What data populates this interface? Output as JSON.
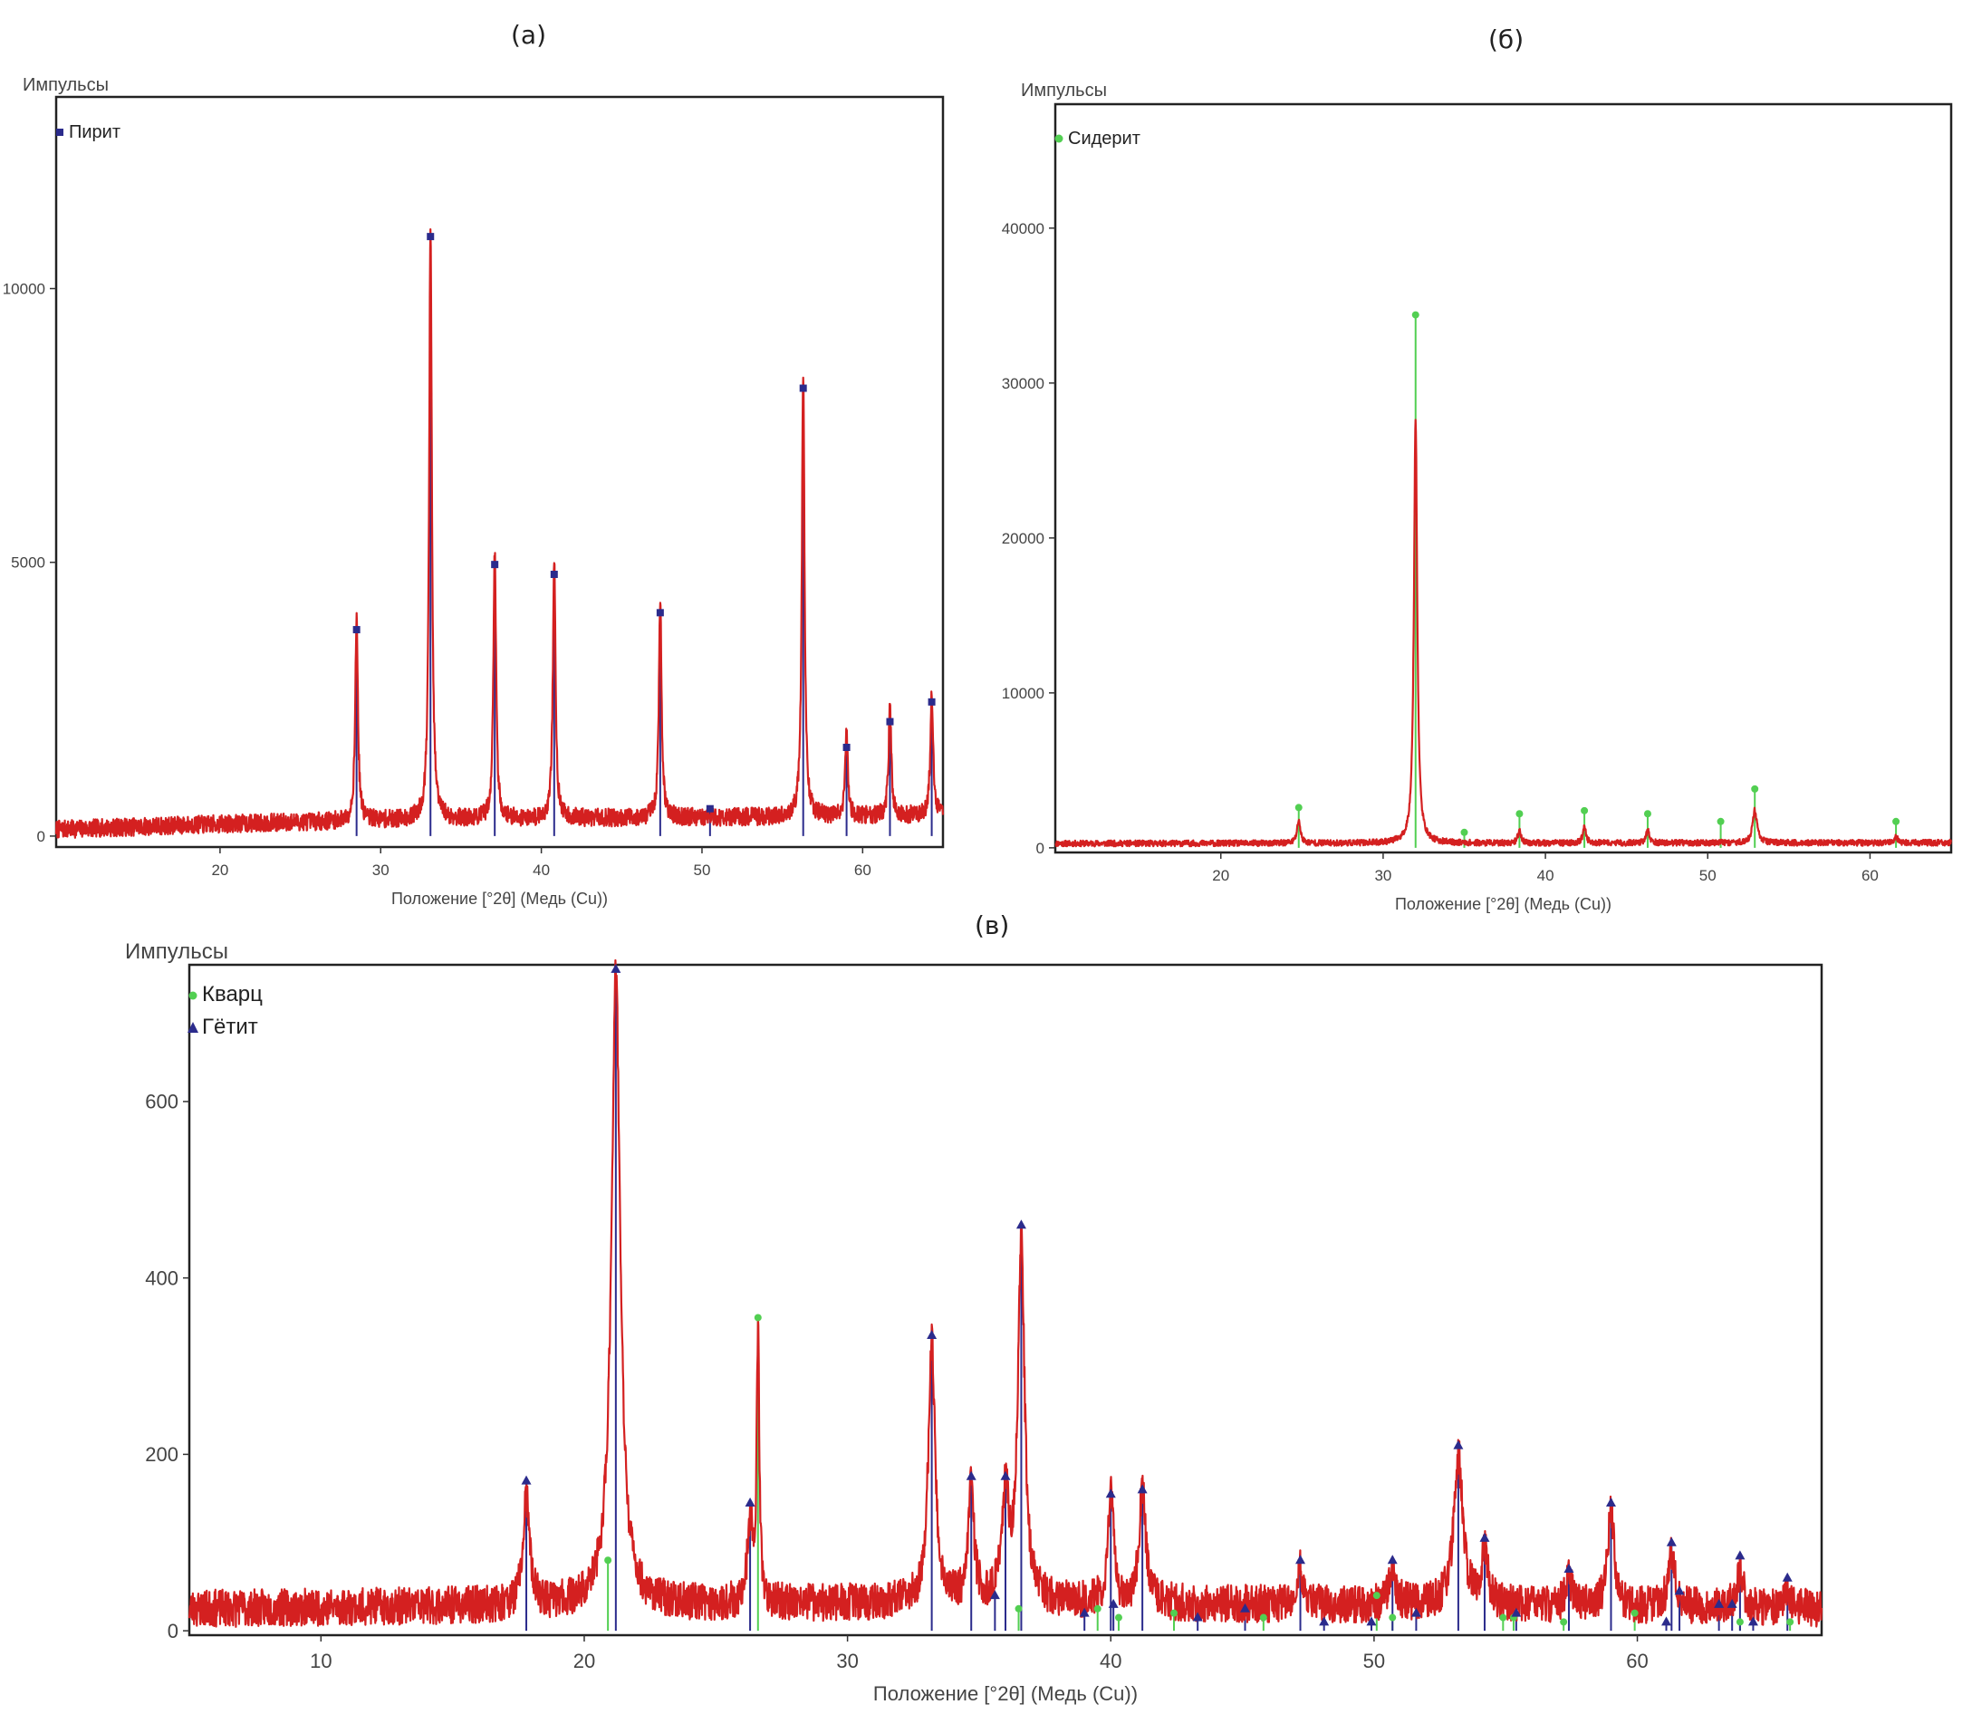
{
  "panel_labels": [
    "(а)",
    "(б)",
    "(в)"
  ],
  "colors": {
    "pattern": "#d42020",
    "pyrite": "#2b2b8c",
    "siderite": "#52cf52",
    "quartz": "#52cf52",
    "goethite": "#2b2b8c",
    "frame": "#222222"
  },
  "chart_data": [
    {
      "type": "line",
      "panel": "(а)",
      "ylabel": "Импульсы",
      "xlabel": "Положение [°2θ] (Медь (Cu))",
      "xlim": [
        9.8,
        65
      ],
      "ylim": [
        -200,
        13500
      ],
      "xticks": [
        20,
        30,
        40,
        50,
        60
      ],
      "yticks": [
        0,
        5000,
        10000
      ],
      "baseline": {
        "x": [
          9.8,
          20,
          30,
          40,
          50,
          60,
          65
        ],
        "y": [
          120,
          220,
          290,
          320,
          340,
          360,
          380
        ]
      },
      "peaks": [
        {
          "x": 28.5,
          "y": 3700,
          "w": 0.1
        },
        {
          "x": 33.1,
          "y": 10900,
          "w": 0.1
        },
        {
          "x": 37.1,
          "y": 4900,
          "w": 0.1
        },
        {
          "x": 40.8,
          "y": 4700,
          "w": 0.1
        },
        {
          "x": 47.4,
          "y": 4000,
          "w": 0.1
        },
        {
          "x": 56.3,
          "y": 8100,
          "w": 0.1
        },
        {
          "x": 59.0,
          "y": 1500,
          "w": 0.1
        },
        {
          "x": 61.7,
          "y": 2000,
          "w": 0.1
        },
        {
          "x": 64.3,
          "y": 2300,
          "w": 0.1
        }
      ],
      "phases": [
        {
          "name": "Пирит",
          "marker": "square",
          "color": "#2b2b8c",
          "refs": [
            [
              28.5,
              3770
            ],
            [
              33.1,
              10950
            ],
            [
              37.1,
              4960
            ],
            [
              40.8,
              4780
            ],
            [
              47.4,
              4080
            ],
            [
              50.5,
              500
            ],
            [
              56.3,
              8180
            ],
            [
              59.0,
              1620
            ],
            [
              61.7,
              2090
            ],
            [
              64.3,
              2450
            ]
          ]
        }
      ]
    },
    {
      "type": "line",
      "panel": "(б)",
      "ylabel": "Импульсы",
      "xlabel": "Положение [°2θ] (Медь (Cu))",
      "xlim": [
        9.8,
        65
      ],
      "ylim": [
        -300,
        48000
      ],
      "xticks": [
        20,
        30,
        40,
        50,
        60
      ],
      "yticks": [
        0,
        10000,
        20000,
        30000,
        40000
      ],
      "baseline": {
        "x": [
          9.8,
          30,
          40,
          50,
          60,
          65
        ],
        "y": [
          280,
          300,
          300,
          320,
          320,
          330
        ]
      },
      "peaks": [
        {
          "x": 24.8,
          "y": 1500,
          "w": 0.12
        },
        {
          "x": 32.0,
          "y": 27500,
          "w": 0.12
        },
        {
          "x": 38.4,
          "y": 800,
          "w": 0.12
        },
        {
          "x": 42.4,
          "y": 1000,
          "w": 0.12
        },
        {
          "x": 46.3,
          "y": 800,
          "w": 0.12
        },
        {
          "x": 52.9,
          "y": 2100,
          "w": 0.16
        },
        {
          "x": 61.6,
          "y": 400,
          "w": 0.12
        }
      ],
      "phases": [
        {
          "name": "Сидерит",
          "marker": "circle",
          "color": "#52cf52",
          "refs": [
            [
              24.8,
              2600
            ],
            [
              32.0,
              34400
            ],
            [
              35.0,
              1000
            ],
            [
              38.4,
              2200
            ],
            [
              42.4,
              2400
            ],
            [
              46.3,
              2200
            ],
            [
              50.8,
              1700
            ],
            [
              52.9,
              3800
            ],
            [
              61.6,
              1700
            ]
          ]
        }
      ]
    },
    {
      "type": "line",
      "panel": "(в)",
      "ylabel": "Импульсы",
      "xlabel": "Положение [°2θ] (Медь (Cu))",
      "xlim": [
        5,
        67
      ],
      "ylim": [
        -5,
        755
      ],
      "xticks": [
        10,
        20,
        30,
        40,
        50,
        60
      ],
      "yticks": [
        0,
        200,
        400,
        600
      ],
      "baseline": {
        "x": [
          5,
          15,
          25,
          35,
          45,
          55,
          67
        ],
        "y": [
          25,
          28,
          30,
          32,
          30,
          28,
          25
        ]
      },
      "peaks": [
        {
          "x": 17.8,
          "y": 120,
          "w": 0.15
        },
        {
          "x": 21.2,
          "y": 720,
          "w": 0.2
        },
        {
          "x": 26.3,
          "y": 90,
          "w": 0.12
        },
        {
          "x": 26.6,
          "y": 300,
          "w": 0.06
        },
        {
          "x": 33.2,
          "y": 300,
          "w": 0.15
        },
        {
          "x": 34.7,
          "y": 140,
          "w": 0.12
        },
        {
          "x": 36.0,
          "y": 120,
          "w": 0.15
        },
        {
          "x": 36.6,
          "y": 410,
          "w": 0.15
        },
        {
          "x": 40.0,
          "y": 130,
          "w": 0.12
        },
        {
          "x": 41.2,
          "y": 130,
          "w": 0.15
        },
        {
          "x": 47.2,
          "y": 40,
          "w": 0.15
        },
        {
          "x": 50.7,
          "y": 40,
          "w": 0.15
        },
        {
          "x": 53.2,
          "y": 170,
          "w": 0.2
        },
        {
          "x": 54.2,
          "y": 60,
          "w": 0.15
        },
        {
          "x": 57.4,
          "y": 30,
          "w": 0.15
        },
        {
          "x": 59.0,
          "y": 110,
          "w": 0.15
        },
        {
          "x": 61.3,
          "y": 60,
          "w": 0.15
        },
        {
          "x": 63.9,
          "y": 40,
          "w": 0.15
        },
        {
          "x": 65.7,
          "y": 20,
          "w": 0.15
        }
      ],
      "phases": [
        {
          "name": "Кварц",
          "marker": "circle",
          "color": "#52cf52",
          "refs": [
            [
              20.9,
              80
            ],
            [
              26.6,
              355
            ],
            [
              36.5,
              25
            ],
            [
              39.5,
              25
            ],
            [
              40.3,
              15
            ],
            [
              42.4,
              20
            ],
            [
              45.8,
              15
            ],
            [
              50.1,
              40
            ],
            [
              50.7,
              15
            ],
            [
              54.9,
              15
            ],
            [
              55.3,
              15
            ],
            [
              57.2,
              10
            ],
            [
              59.9,
              20
            ],
            [
              63.9,
              10
            ],
            [
              65.8,
              10
            ]
          ]
        },
        {
          "name": "Гётит",
          "marker": "triangle",
          "color": "#2b2b8c",
          "refs": [
            [
              17.8,
              170
            ],
            [
              21.2,
              750
            ],
            [
              26.3,
              145
            ],
            [
              33.2,
              335
            ],
            [
              34.7,
              175
            ],
            [
              35.6,
              40
            ],
            [
              36.0,
              175
            ],
            [
              36.6,
              460
            ],
            [
              39.0,
              20
            ],
            [
              40.0,
              155
            ],
            [
              40.1,
              30
            ],
            [
              41.2,
              160
            ],
            [
              43.3,
              15
            ],
            [
              45.1,
              25
            ],
            [
              47.2,
              80
            ],
            [
              48.1,
              10
            ],
            [
              49.9,
              10
            ],
            [
              50.7,
              80
            ],
            [
              51.6,
              20
            ],
            [
              53.2,
              210
            ],
            [
              54.2,
              105
            ],
            [
              55.4,
              20
            ],
            [
              57.4,
              70
            ],
            [
              59.0,
              145
            ],
            [
              61.1,
              10
            ],
            [
              61.3,
              100
            ],
            [
              61.6,
              45
            ],
            [
              63.1,
              30
            ],
            [
              63.6,
              30
            ],
            [
              63.9,
              85
            ],
            [
              64.4,
              10
            ],
            [
              65.7,
              60
            ]
          ]
        }
      ]
    }
  ]
}
